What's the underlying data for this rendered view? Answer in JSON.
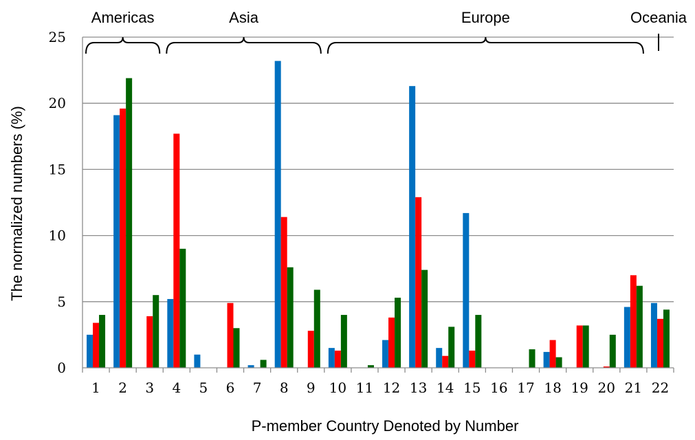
{
  "chart_data": {
    "type": "bar",
    "xlabel": "P-member Country Denoted by Number",
    "ylabel": "The normalized numbers (%)",
    "ylim": [
      0,
      25
    ],
    "yticks": [
      0,
      5,
      10,
      15,
      20,
      25
    ],
    "grid": true,
    "categories": [
      "1",
      "2",
      "3",
      "4",
      "5",
      "6",
      "7",
      "8",
      "9",
      "10",
      "11",
      "12",
      "13",
      "14",
      "15",
      "16",
      "17",
      "18",
      "19",
      "20",
      "21",
      "22"
    ],
    "series": [
      {
        "color": "#0070c0",
        "values": [
          2.5,
          19.1,
          0,
          5.2,
          1.0,
          0,
          0.2,
          23.2,
          0,
          1.5,
          0,
          2.1,
          21.3,
          1.5,
          11.7,
          0,
          0,
          1.2,
          0,
          0,
          4.6,
          4.9
        ]
      },
      {
        "color": "#ff0000",
        "values": [
          3.4,
          19.6,
          3.9,
          17.7,
          0,
          4.9,
          0,
          11.4,
          2.8,
          1.3,
          0,
          3.8,
          12.9,
          0.9,
          1.3,
          0,
          0,
          2.1,
          3.2,
          0.1,
          7.0,
          3.7
        ]
      },
      {
        "color": "#006400",
        "values": [
          4.0,
          21.9,
          5.5,
          9.0,
          0,
          3.0,
          0.6,
          7.6,
          5.9,
          4.0,
          0.2,
          5.3,
          7.4,
          3.1,
          4.0,
          0,
          1.4,
          0.8,
          3.2,
          2.5,
          6.2,
          4.4
        ]
      }
    ],
    "regions": [
      {
        "label": "Americas",
        "from": 1,
        "to": 3
      },
      {
        "label": "Asia",
        "from": 4,
        "to": 9
      },
      {
        "label": "Europe",
        "from": 10,
        "to": 21
      },
      {
        "label": "Oceania",
        "from": 22,
        "to": 22
      }
    ]
  }
}
